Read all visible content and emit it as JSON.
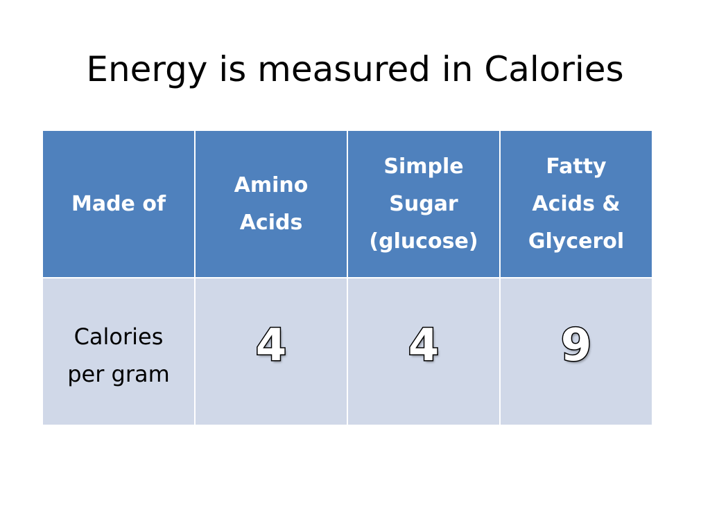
{
  "title": "Energy is measured in Calories",
  "table": {
    "header": {
      "label": "Made of",
      "columns": [
        [
          "Amino",
          "Acids"
        ],
        [
          "Simple",
          "Sugar",
          "(glucose)"
        ],
        [
          "Fatty",
          "Acids &",
          "Glycerol"
        ]
      ]
    },
    "row": {
      "label": [
        "Calories",
        "per gram"
      ],
      "values": [
        "4",
        "4",
        "9"
      ]
    }
  },
  "colors": {
    "header_fill": "#4f81bd",
    "body_fill": "#d0d8e8",
    "border": "#ffffff"
  }
}
